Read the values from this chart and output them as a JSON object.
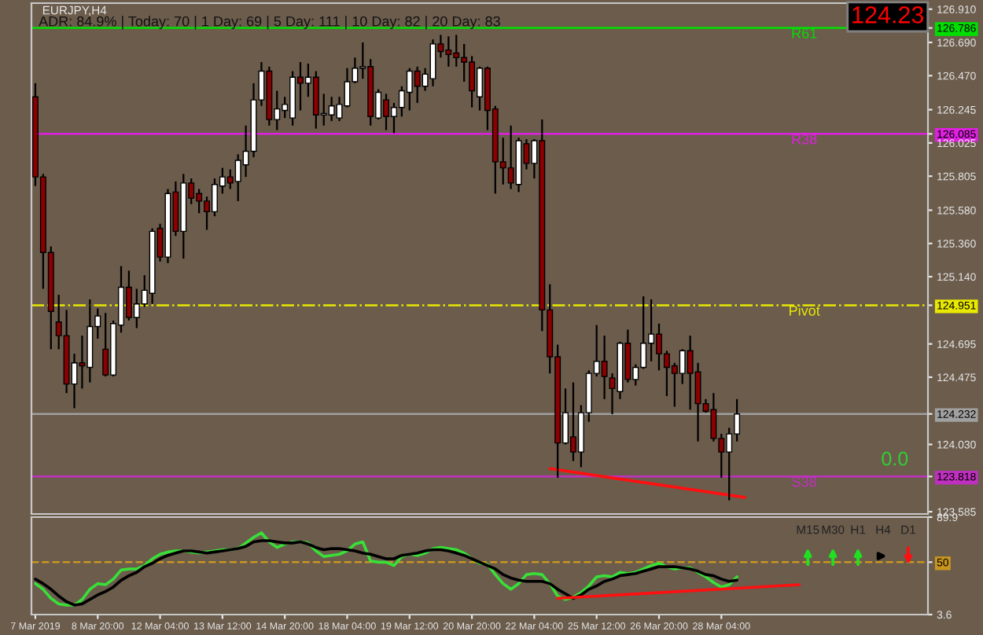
{
  "chart_data": [
    {
      "type": "candlestick",
      "title": "EURJPY,H4",
      "tick_labels": "y",
      "categories": [
        null,
        null,
        null,
        null,
        null,
        null,
        null,
        null,
        null,
        null,
        null,
        null,
        null,
        null,
        null,
        null,
        null,
        null,
        null,
        null,
        null,
        null,
        null,
        null,
        null,
        null,
        null,
        null,
        null,
        null,
        null,
        null,
        null,
        null,
        null,
        null,
        null,
        null,
        null,
        null,
        null,
        null,
        null,
        null,
        null,
        null,
        null,
        null,
        null,
        null,
        null,
        null,
        null,
        null,
        null,
        null,
        null,
        null,
        null,
        null,
        null,
        null,
        null,
        null,
        null,
        null,
        null,
        null,
        null,
        null,
        null,
        null,
        null,
        null,
        null,
        null,
        null,
        null,
        null,
        null,
        null,
        null,
        null,
        null,
        null,
        null,
        null,
        null,
        null,
        null,
        null,
        null,
        null,
        null,
        null,
        null,
        null,
        null,
        null,
        null,
        null,
        null,
        null,
        null,
        null,
        null,
        null,
        null,
        null,
        null,
        null,
        null,
        null,
        null,
        null
      ],
      "ohlc": [
        [
          126.33,
          126.42,
          125.74,
          125.8
        ],
        [
          125.8,
          125.82,
          125.06,
          125.3
        ],
        [
          125.3,
          125.34,
          124.66,
          124.91
        ],
        [
          124.84,
          125.02,
          124.66,
          124.75
        ],
        [
          124.75,
          124.92,
          124.37,
          124.43
        ],
        [
          124.43,
          124.63,
          124.27,
          124.57
        ],
        [
          124.57,
          124.75,
          124.4,
          124.55
        ],
        [
          124.54,
          124.99,
          124.44,
          124.81
        ],
        [
          124.81,
          124.93,
          124.73,
          124.88
        ],
        [
          124.66,
          124.9,
          124.48,
          124.49
        ],
        [
          124.49,
          124.85,
          124.48,
          124.83
        ],
        [
          124.82,
          125.21,
          124.77,
          125.07
        ],
        [
          125.07,
          125.18,
          124.85,
          124.87
        ],
        [
          124.87,
          125.06,
          124.8,
          124.96
        ],
        [
          124.96,
          125.15,
          124.94,
          125.05
        ],
        [
          125.03,
          125.46,
          124.96,
          125.44
        ],
        [
          125.46,
          125.49,
          125.24,
          125.27
        ],
        [
          125.27,
          125.72,
          125.23,
          125.69
        ],
        [
          125.7,
          125.77,
          125.41,
          125.44
        ],
        [
          125.44,
          125.82,
          125.26,
          125.76
        ],
        [
          125.76,
          125.79,
          125.62,
          125.66
        ],
        [
          125.69,
          125.72,
          125.56,
          125.64
        ],
        [
          125.64,
          125.67,
          125.45,
          125.57
        ],
        [
          125.57,
          125.79,
          125.54,
          125.75
        ],
        [
          125.74,
          125.86,
          125.69,
          125.8
        ],
        [
          125.8,
          125.85,
          125.72,
          125.76
        ],
        [
          125.77,
          125.95,
          125.64,
          125.91
        ],
        [
          125.88,
          126.14,
          125.8,
          125.97
        ],
        [
          125.97,
          126.42,
          125.93,
          126.31
        ],
        [
          126.31,
          126.56,
          126.27,
          126.5
        ],
        [
          126.5,
          126.53,
          126.14,
          126.18
        ],
        [
          126.18,
          126.37,
          126.11,
          126.25
        ],
        [
          126.24,
          126.33,
          126.19,
          126.28
        ],
        [
          126.19,
          126.5,
          126.14,
          126.46
        ],
        [
          126.46,
          126.56,
          126.24,
          126.42
        ],
        [
          126.42,
          126.55,
          126.33,
          126.46
        ],
        [
          126.46,
          126.5,
          126.12,
          126.21
        ],
        [
          126.21,
          126.35,
          126.14,
          126.22
        ],
        [
          126.21,
          126.33,
          126.17,
          126.27
        ],
        [
          126.19,
          126.33,
          126.17,
          126.28
        ],
        [
          126.27,
          126.52,
          126.26,
          126.43
        ],
        [
          126.43,
          126.59,
          126.42,
          126.52
        ],
        [
          126.52,
          126.69,
          126.45,
          126.53
        ],
        [
          126.53,
          126.58,
          126.14,
          126.2
        ],
        [
          126.19,
          126.38,
          126.18,
          126.36
        ],
        [
          126.31,
          126.35,
          126.11,
          126.2
        ],
        [
          126.2,
          126.29,
          126.09,
          126.26
        ],
        [
          126.26,
          126.4,
          126.2,
          126.37
        ],
        [
          126.36,
          126.52,
          126.24,
          126.5
        ],
        [
          126.5,
          126.53,
          126.29,
          126.4
        ],
        [
          126.4,
          126.52,
          126.37,
          126.48
        ],
        [
          126.45,
          126.71,
          126.4,
          126.68
        ],
        [
          126.68,
          126.74,
          126.59,
          126.63
        ],
        [
          126.64,
          126.73,
          126.53,
          126.61
        ],
        [
          126.62,
          126.74,
          126.53,
          126.59
        ],
        [
          126.59,
          126.68,
          126.43,
          126.56
        ],
        [
          126.56,
          126.6,
          126.26,
          126.37
        ],
        [
          126.33,
          126.53,
          126.24,
          126.52
        ],
        [
          126.52,
          126.53,
          126.11,
          126.24
        ],
        [
          126.25,
          126.27,
          125.69,
          125.9
        ],
        [
          125.9,
          126.06,
          125.75,
          125.86
        ],
        [
          125.86,
          126.14,
          125.72,
          125.76
        ],
        [
          125.75,
          126.06,
          125.7,
          126.04
        ],
        [
          126.02,
          126.05,
          125.85,
          125.89
        ],
        [
          125.89,
          126.05,
          125.79,
          126.04
        ],
        [
          126.04,
          126.18,
          124.78,
          124.92
        ],
        [
          124.92,
          125.09,
          124.5,
          124.61
        ],
        [
          124.61,
          124.69,
          123.81,
          124.04
        ],
        [
          124.04,
          124.4,
          124.03,
          124.24
        ],
        [
          124.08,
          124.44,
          123.92,
          123.98
        ],
        [
          123.98,
          124.29,
          123.88,
          124.24
        ],
        [
          124.24,
          124.52,
          124.18,
          124.5
        ],
        [
          124.5,
          124.82,
          124.48,
          124.58
        ],
        [
          124.58,
          124.75,
          124.33,
          124.48
        ],
        [
          124.47,
          124.5,
          124.23,
          124.4
        ],
        [
          124.38,
          124.71,
          124.33,
          124.7
        ],
        [
          124.7,
          124.79,
          124.44,
          124.46
        ],
        [
          124.46,
          124.56,
          124.42,
          124.54
        ],
        [
          124.54,
          125.01,
          124.53,
          124.7
        ],
        [
          124.7,
          124.99,
          124.58,
          124.76
        ],
        [
          124.76,
          124.83,
          124.52,
          124.63
        ],
        [
          124.63,
          124.65,
          124.35,
          124.54
        ],
        [
          124.55,
          124.57,
          124.28,
          124.5
        ],
        [
          124.5,
          124.66,
          124.43,
          124.65
        ],
        [
          124.65,
          124.75,
          124.26,
          124.5
        ],
        [
          124.51,
          124.57,
          124.05,
          124.3
        ],
        [
          124.3,
          124.33,
          124.24,
          124.25
        ],
        [
          124.26,
          124.37,
          124.05,
          124.07
        ],
        [
          124.07,
          124.1,
          123.81,
          123.98
        ],
        [
          123.98,
          124.14,
          123.66,
          124.1
        ],
        [
          124.1,
          124.33,
          124.05,
          124.232
        ],
        null,
        null,
        null,
        null,
        null,
        null,
        null,
        null,
        null,
        null,
        null,
        null,
        null,
        null,
        null,
        null,
        null,
        null,
        null,
        null,
        null,
        null,
        null,
        null
      ],
      "series": [
        {
          "type": "line",
          "color": "#ff1010",
          "values": [
            null,
            null,
            null,
            null,
            null,
            null,
            null,
            null,
            null,
            null,
            null,
            null,
            null,
            null,
            null,
            null,
            null,
            null,
            null,
            null,
            null,
            null,
            null,
            null,
            null,
            null,
            null,
            null,
            null,
            null,
            null,
            null,
            null,
            null,
            null,
            null,
            null,
            null,
            null,
            null,
            null,
            null,
            null,
            null,
            null,
            null,
            null,
            null,
            null,
            null,
            null,
            null,
            null,
            null,
            null,
            null,
            null,
            null,
            null,
            null,
            null,
            null,
            null,
            null,
            null,
            null,
            123.87,
            null,
            null,
            null,
            null,
            null,
            null,
            null,
            null,
            null,
            null,
            null,
            null,
            null,
            null,
            null,
            null,
            null,
            null,
            null,
            null,
            null,
            null,
            null,
            null,
            123.68,
            null,
            null,
            null,
            null,
            null,
            null,
            null,
            null,
            null,
            null,
            null,
            null,
            null,
            null,
            null,
            null,
            null,
            null,
            null,
            null,
            null,
            null,
            null
          ]
        }
      ],
      "ylim": [
        123.57,
        126.95
      ],
      "yticks": [
        {
          "value": 126.91,
          "label": "126.910"
        },
        {
          "value": 126.786,
          "label": "126.786"
        },
        {
          "value": 126.69,
          "label": "126.690"
        },
        {
          "value": 126.47,
          "label": "126.470"
        },
        {
          "value": 126.245,
          "label": "126.245"
        },
        {
          "value": 126.085,
          "label": "126.085"
        },
        {
          "value": 126.025,
          "label": "126.025"
        },
        {
          "value": 125.805,
          "label": "125.805"
        },
        {
          "value": 125.58,
          "label": "125.580"
        },
        {
          "value": 125.36,
          "label": "125.360"
        },
        {
          "value": 125.14,
          "label": "125.140"
        },
        {
          "value": 124.951,
          "label": "124.951"
        },
        {
          "value": 124.695,
          "label": "124.695"
        },
        {
          "value": 124.475,
          "label": "124.475"
        },
        {
          "value": 124.232,
          "label": "124.232"
        },
        {
          "value": 124.03,
          "label": "124.030"
        },
        {
          "value": 123.818,
          "label": "123.818"
        },
        {
          "value": 123.585,
          "label": "123.585"
        }
      ],
      "ref_lines": [
        {
          "axis": "y",
          "value": 126.786,
          "label": "R61",
          "color": "#00e000",
          "line_style": "solid"
        },
        {
          "axis": "y",
          "value": 126.085,
          "label": "R38",
          "color": "#e020e0",
          "line_style": "solid"
        },
        {
          "axis": "y",
          "value": 124.951,
          "label": "Pivot",
          "color": "#e8e800",
          "line_style": "dashdot"
        },
        {
          "axis": "y",
          "value": 124.232,
          "color": "#a0a0a0",
          "line_style": "solid"
        },
        {
          "axis": "y",
          "value": 123.818,
          "label": "S38",
          "color": "#c030c0",
          "line_style": "solid"
        }
      ],
      "annotations": [
        "ADR: 84.9% | Today: 70 | 1 Day: 69 | 5 Day: 111 | 10 Day: 82 | 20 Day: 83",
        "124.23",
        "0.0"
      ]
    },
    {
      "type": "line",
      "categories": [
        "7 Mar 2019",
        null,
        null,
        null,
        null,
        null,
        null,
        null,
        "8 Mar 20:00",
        null,
        null,
        null,
        null,
        null,
        null,
        null,
        "12 Mar 04:00",
        null,
        null,
        null,
        null,
        null,
        null,
        null,
        "13 Mar 12:00",
        null,
        null,
        null,
        null,
        null,
        null,
        null,
        "14 Mar 20:00",
        null,
        null,
        null,
        null,
        null,
        null,
        null,
        "18 Mar 04:00",
        null,
        null,
        null,
        null,
        null,
        null,
        null,
        "19 Mar 12:00",
        null,
        null,
        null,
        null,
        null,
        null,
        null,
        "20 Mar 20:00",
        null,
        null,
        null,
        null,
        null,
        null,
        null,
        "22 Mar 04:00",
        null,
        null,
        null,
        null,
        null,
        null,
        null,
        "25 Mar 12:00",
        null,
        null,
        null,
        null,
        null,
        null,
        null,
        "26 Mar 20:00",
        null,
        null,
        null,
        null,
        null,
        null,
        null,
        "28 Mar 04:00",
        null,
        null,
        null,
        null,
        null,
        null,
        null,
        null,
        null,
        null,
        null,
        null,
        null,
        null,
        null,
        null,
        null,
        null,
        null,
        null,
        null,
        null,
        null,
        null,
        null,
        null
      ],
      "series": [
        {
          "color": "#38e038",
          "values": [
            31,
            26,
            18,
            13,
            12,
            12,
            17,
            26,
            31,
            30,
            35,
            43,
            44,
            44,
            47,
            53,
            57,
            59,
            60,
            60,
            59,
            58,
            59,
            60,
            61,
            61,
            62,
            67,
            72,
            76,
            68,
            63,
            66,
            68,
            68,
            67,
            60,
            55,
            56,
            57,
            60,
            66,
            68,
            51,
            50,
            50,
            47,
            55,
            57,
            56,
            58,
            62,
            63,
            62,
            61,
            58,
            53,
            49,
            48,
            39,
            31,
            26,
            31,
            39,
            40,
            39,
            31,
            20,
            17,
            19,
            23,
            29,
            37,
            38,
            37,
            41,
            40,
            41,
            44,
            47,
            49,
            46,
            44,
            45,
            45,
            41,
            37,
            32,
            28,
            30,
            37,
            null,
            null,
            null,
            null,
            null,
            null,
            null,
            null,
            null,
            null,
            null,
            null,
            null,
            null,
            null,
            null,
            null,
            null,
            null,
            null,
            null,
            null,
            null,
            null
          ]
        },
        {
          "color": "#000000",
          "values": [
            35,
            31,
            26,
            20,
            15,
            12,
            13,
            17,
            21,
            24,
            28,
            34,
            38,
            41,
            46,
            49,
            53,
            56,
            58,
            60,
            60,
            59,
            58,
            59,
            60,
            61,
            62,
            64,
            68,
            69,
            69,
            68,
            67,
            67,
            68,
            66,
            63,
            61,
            62,
            62,
            61,
            60,
            58,
            57,
            55,
            53,
            53,
            56,
            57,
            58,
            60,
            61,
            61,
            60,
            58,
            56,
            53,
            50,
            47,
            44,
            39,
            36,
            34,
            33,
            33,
            33,
            31,
            26,
            22,
            18,
            21,
            26,
            29,
            33,
            35,
            38,
            39,
            40,
            42,
            44,
            46,
            46,
            46,
            45,
            44,
            42,
            39,
            38,
            35,
            33,
            34,
            null,
            null,
            null,
            null,
            null,
            null,
            null,
            null,
            null,
            null,
            null,
            null,
            null,
            null,
            null,
            null,
            null,
            null,
            null,
            null,
            null,
            null,
            null,
            null
          ]
        },
        {
          "color": "#ff1010",
          "values": [
            null,
            null,
            null,
            null,
            null,
            null,
            null,
            null,
            null,
            null,
            null,
            null,
            null,
            null,
            null,
            null,
            null,
            null,
            null,
            null,
            null,
            null,
            null,
            null,
            null,
            null,
            null,
            null,
            null,
            null,
            null,
            null,
            null,
            null,
            null,
            null,
            null,
            null,
            null,
            null,
            null,
            null,
            null,
            null,
            null,
            null,
            null,
            null,
            null,
            null,
            null,
            null,
            null,
            null,
            null,
            null,
            null,
            null,
            null,
            null,
            null,
            null,
            null,
            null,
            null,
            null,
            null,
            18,
            null,
            null,
            null,
            null,
            null,
            null,
            null,
            null,
            null,
            null,
            null,
            null,
            null,
            null,
            null,
            null,
            null,
            null,
            null,
            null,
            null,
            null,
            null,
            null,
            null,
            null,
            null,
            null,
            null,
            null,
            30,
            null,
            null,
            null,
            null,
            null,
            null,
            null,
            null,
            null,
            null,
            null,
            null,
            null,
            null,
            null,
            null
          ]
        }
      ],
      "ylim": [
        3.6,
        89.9
      ],
      "yticks": [
        3.6,
        50,
        89.9
      ],
      "ref_lines": [
        {
          "axis": "y",
          "value": 50,
          "color": "#c8961e",
          "line_style": "dashed"
        }
      ],
      "annotations": [
        "M15",
        "M30",
        "H1",
        "H4",
        "D1"
      ]
    }
  ]
}
